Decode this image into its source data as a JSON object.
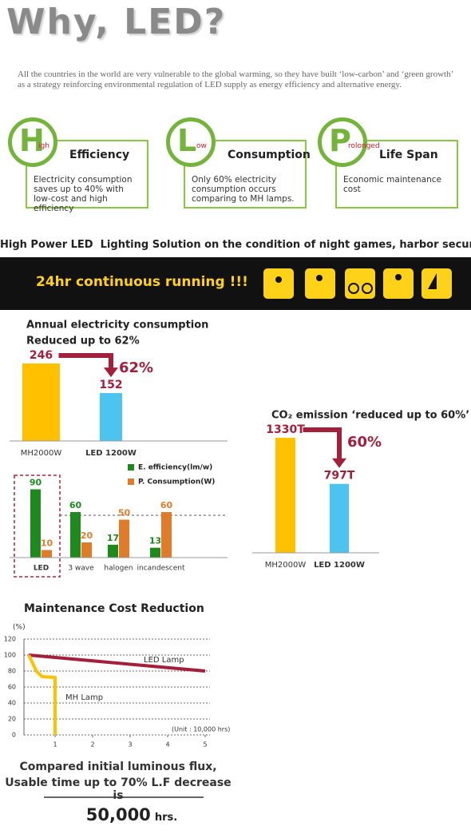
{
  "title": "Why, LED?",
  "intro": "All the countries in the world are very vulnerable to the global warming, so they have built ‘low-carbon’ and ‘green growth’ as a strategy reinforcing environmental regulation of LED supply as energy efficiency and alternative energy.",
  "features": [
    {
      "letter": "H",
      "sub": "igh",
      "heading": "Efficiency",
      "text": "Electricity consumption saves up to 40% with low-cost and high efficiency"
    },
    {
      "letter": "L",
      "sub": "ow",
      "heading": "Consumption",
      "text": "Only 60% electricity consumption occurs comparing to MH lamps."
    },
    {
      "letter": "P",
      "sub": "rolonged",
      "heading": "Life Span",
      "text": "Economic maintenance cost"
    }
  ],
  "solution_heading": "High Power LED  Lighting Solution on the condition of night games, harbor security",
  "banner": "24hr continuous running !!!",
  "chart_data": [
    {
      "type": "bar",
      "title": "Annual electricity consumption",
      "subtitle": "Reduced up to 62%",
      "categories": [
        "MH2000W",
        "LED 1200W"
      ],
      "values": [
        246,
        152
      ],
      "colors": [
        "#ffc000",
        "#4dc3f0"
      ],
      "annotation": "62%"
    },
    {
      "type": "grouped-bar",
      "categories": [
        "LED",
        "3 wave",
        "halogen",
        "incandescent"
      ],
      "series": [
        {
          "name": "E. efficiency(lm/w)",
          "color": "#1e8a1e",
          "values": [
            90,
            60,
            17,
            13
          ]
        },
        {
          "name": "P. Consumption(W)",
          "color": "#e07b2a",
          "values": [
            10,
            20,
            50,
            60
          ]
        }
      ]
    },
    {
      "type": "bar",
      "title": "CO₂ emission  ‘reduced up to 60%’",
      "categories": [
        "MH2000W",
        "LED 1200W"
      ],
      "values": [
        1330,
        797
      ],
      "value_labels": [
        "1330T",
        "797T"
      ],
      "colors": [
        "#ffc000",
        "#4dc3f0"
      ],
      "annotation": "60%"
    },
    {
      "type": "line",
      "title": "Maintenance Cost Reduction",
      "y_label": "(%)",
      "x_note": "(Unit : 10,000  hrs)",
      "xlim": [
        0,
        5.2
      ],
      "xticks": [
        1,
        2,
        3,
        4,
        5
      ],
      "ylim": [
        0,
        120
      ],
      "yticks": [
        0,
        20,
        40,
        60,
        80,
        100,
        120
      ],
      "grid": true,
      "series": [
        {
          "name": "LED Lamp",
          "color": "#a3203c",
          "x": [
            0.3,
            5
          ],
          "values": [
            100,
            80
          ]
        },
        {
          "name": "MH Lamp",
          "color": "#ffc000",
          "x": [
            0.3,
            0.5,
            0.65,
            1,
            1
          ],
          "values": [
            100,
            80,
            73,
            72,
            0
          ]
        }
      ]
    }
  ],
  "footer": {
    "line1": "Compared initial luminous flux,",
    "line2": "Usable time up to 70% L.F decrease is",
    "value": "50,000",
    "unit": "hrs."
  }
}
